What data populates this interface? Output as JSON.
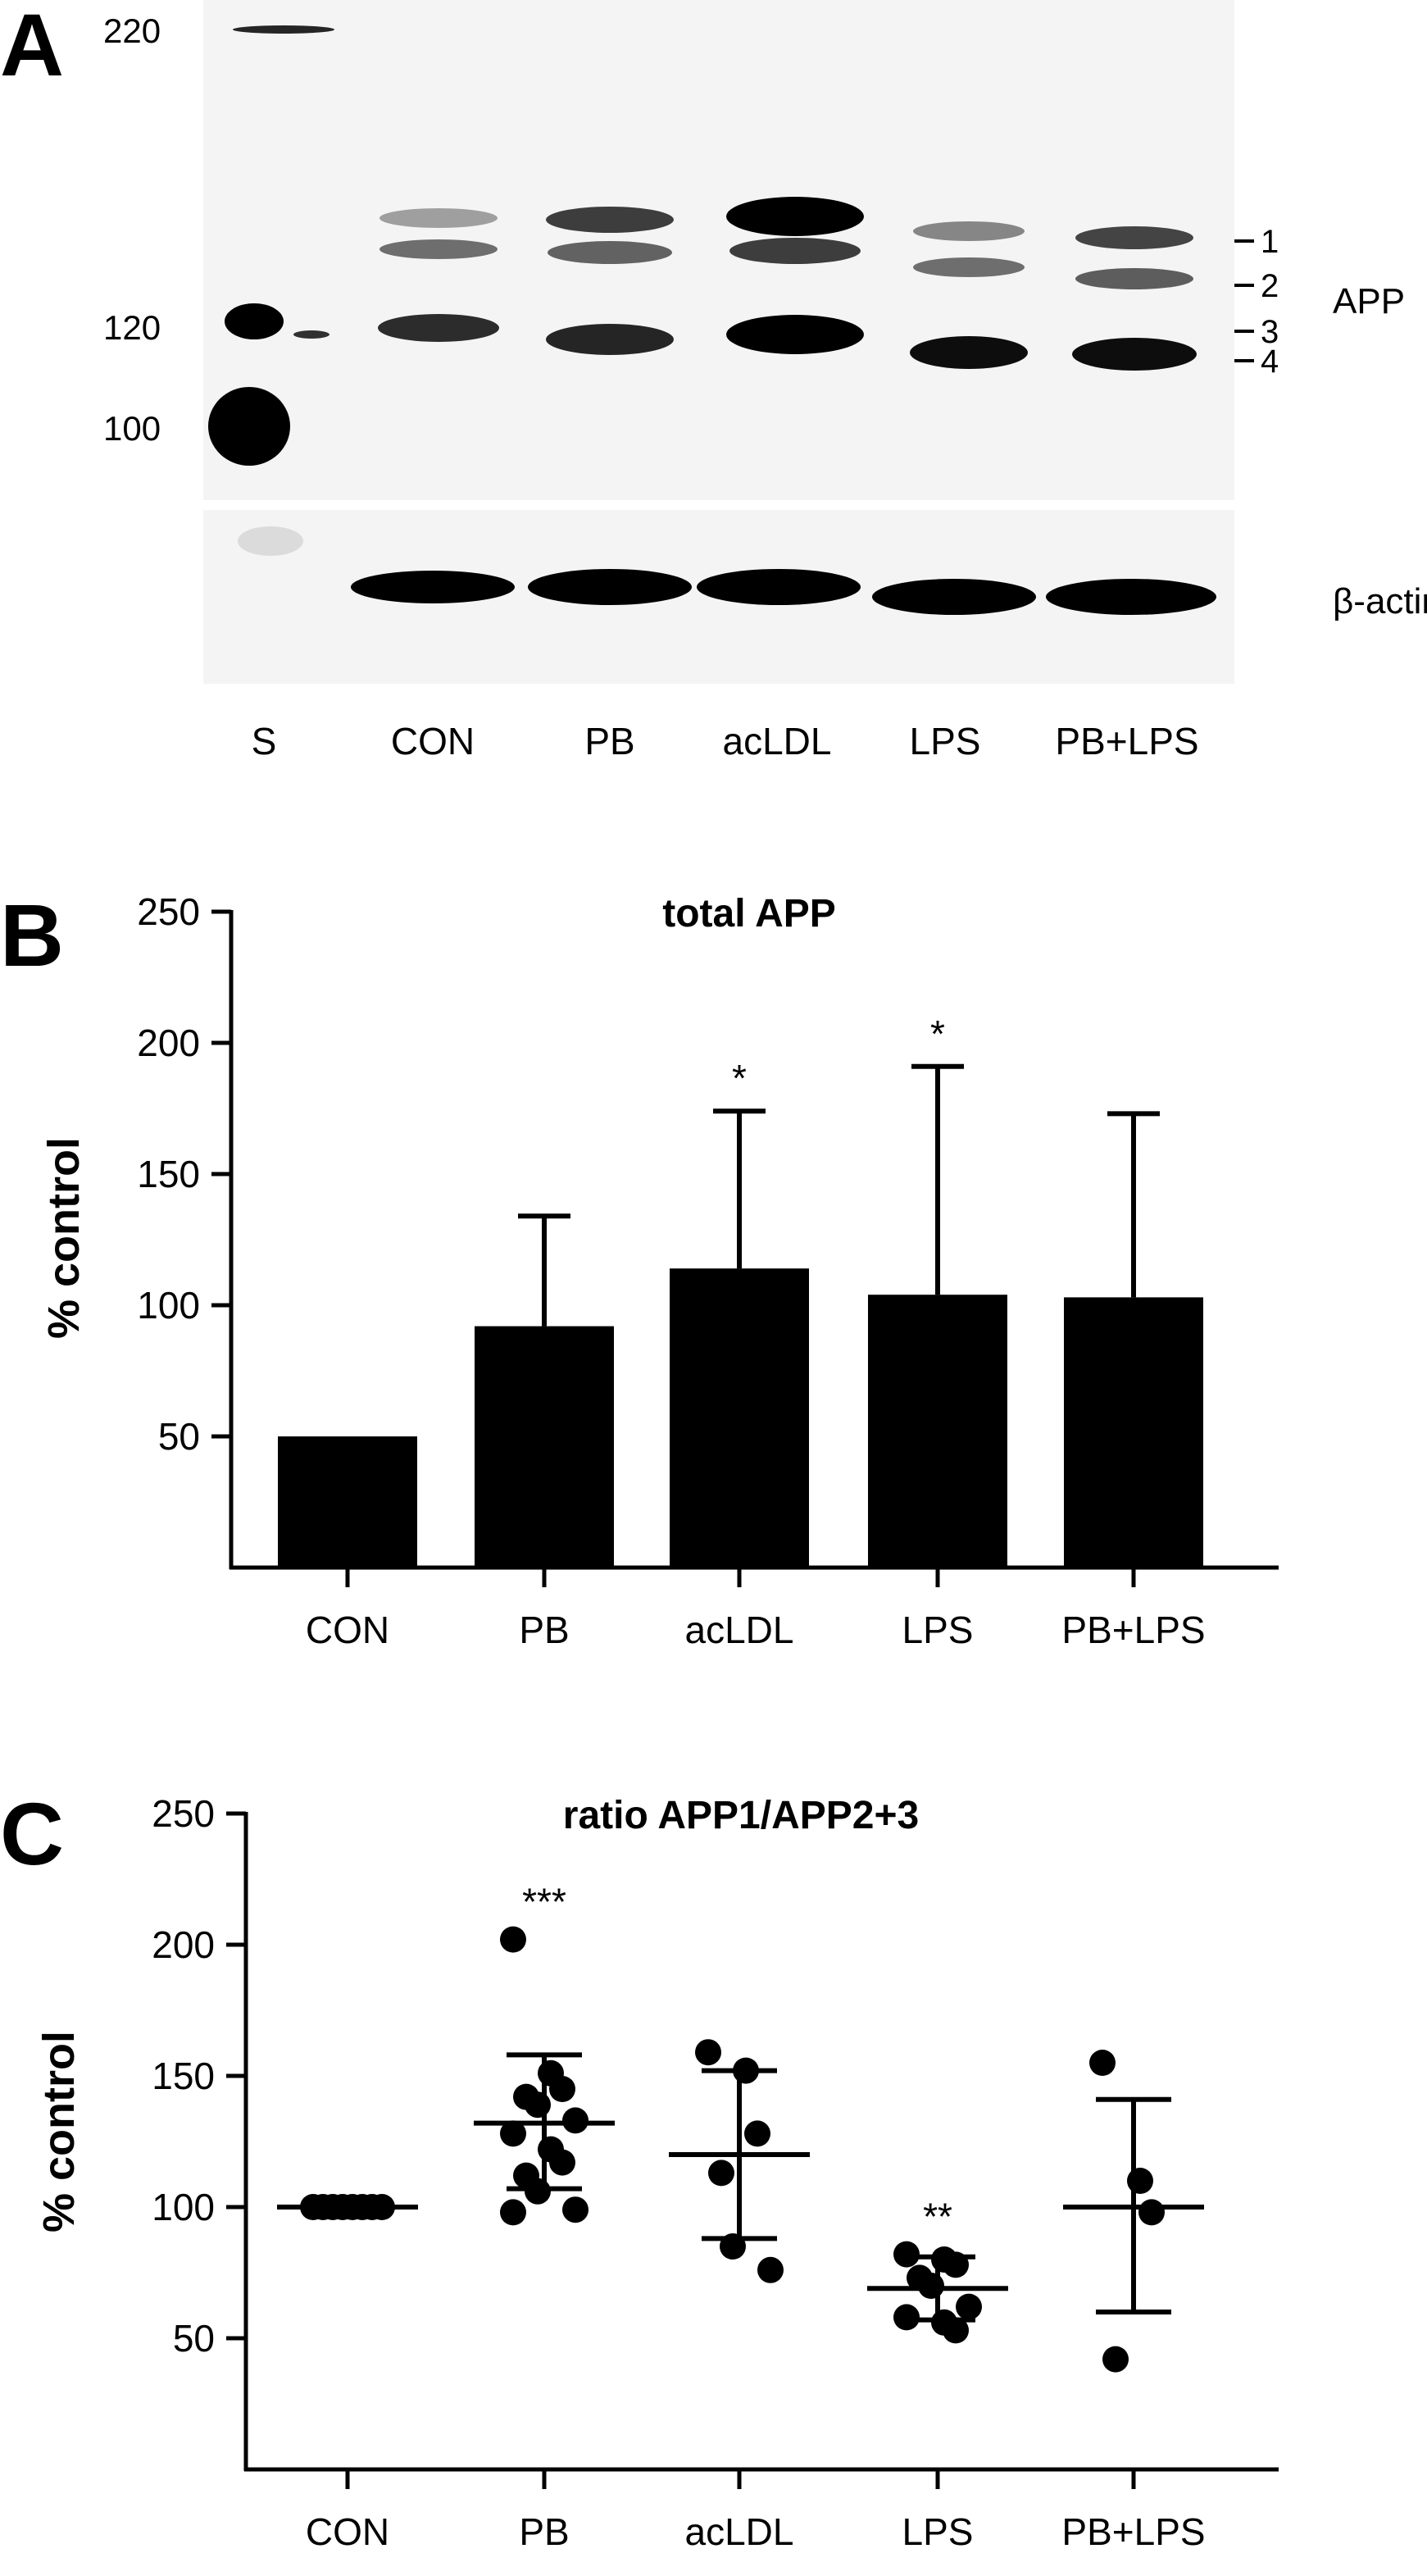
{
  "panel_a": {
    "letter": "A",
    "marker_labels": [
      "220",
      "120",
      "100"
    ],
    "lanes": [
      "S",
      "CON",
      "PB",
      "acLDL",
      "LPS",
      "PB+LPS"
    ],
    "band_numbers": [
      "1",
      "2",
      "3",
      "4"
    ],
    "app_label": "APP",
    "actin_label": "β-actin",
    "blot_color": "#f4f4f4",
    "band_color": "#000000"
  },
  "chart_data": [
    {
      "panel": "B",
      "type": "bar",
      "title": "total APP",
      "ylabel": "% control",
      "xlabel": "",
      "categories": [
        "CON",
        "PB",
        "acLDL",
        "LPS",
        "PB+LPS"
      ],
      "values": [
        50,
        92,
        114,
        104,
        103
      ],
      "error_upper": [
        50,
        134,
        174,
        191,
        173
      ],
      "significance": [
        "",
        "",
        "*",
        "*",
        ""
      ],
      "ylim": [
        0,
        250
      ],
      "yticks": [
        50,
        100,
        150,
        200,
        250
      ],
      "grid": false,
      "bar_color": "#000000"
    },
    {
      "panel": "C",
      "type": "scatter",
      "title": "ratio APP1/APP2+3",
      "ylabel": "% control",
      "xlabel": "",
      "categories": [
        "CON",
        "PB",
        "acLDL",
        "LPS",
        "PB+LPS"
      ],
      "points": [
        [
          100,
          100,
          100,
          100,
          100,
          100,
          100,
          100
        ],
        [
          202,
          151,
          145,
          142,
          139,
          133,
          128,
          122,
          117,
          112,
          106,
          99,
          98
        ],
        [
          159,
          152,
          128,
          113,
          85,
          76
        ],
        [
          82,
          80,
          78,
          73,
          70,
          62,
          58,
          56,
          53
        ],
        [
          155,
          110,
          98,
          42
        ]
      ],
      "mean": [
        100,
        132,
        120,
        69,
        100
      ],
      "sd_low": [
        100,
        107,
        88,
        57,
        60
      ],
      "sd_high": [
        100,
        158,
        152,
        81,
        141
      ],
      "significance": [
        "",
        "***",
        "",
        "**",
        ""
      ],
      "ylim": [
        0,
        250
      ],
      "yticks": [
        50,
        100,
        150,
        200,
        250
      ],
      "grid": false,
      "point_color": "#000000"
    }
  ]
}
